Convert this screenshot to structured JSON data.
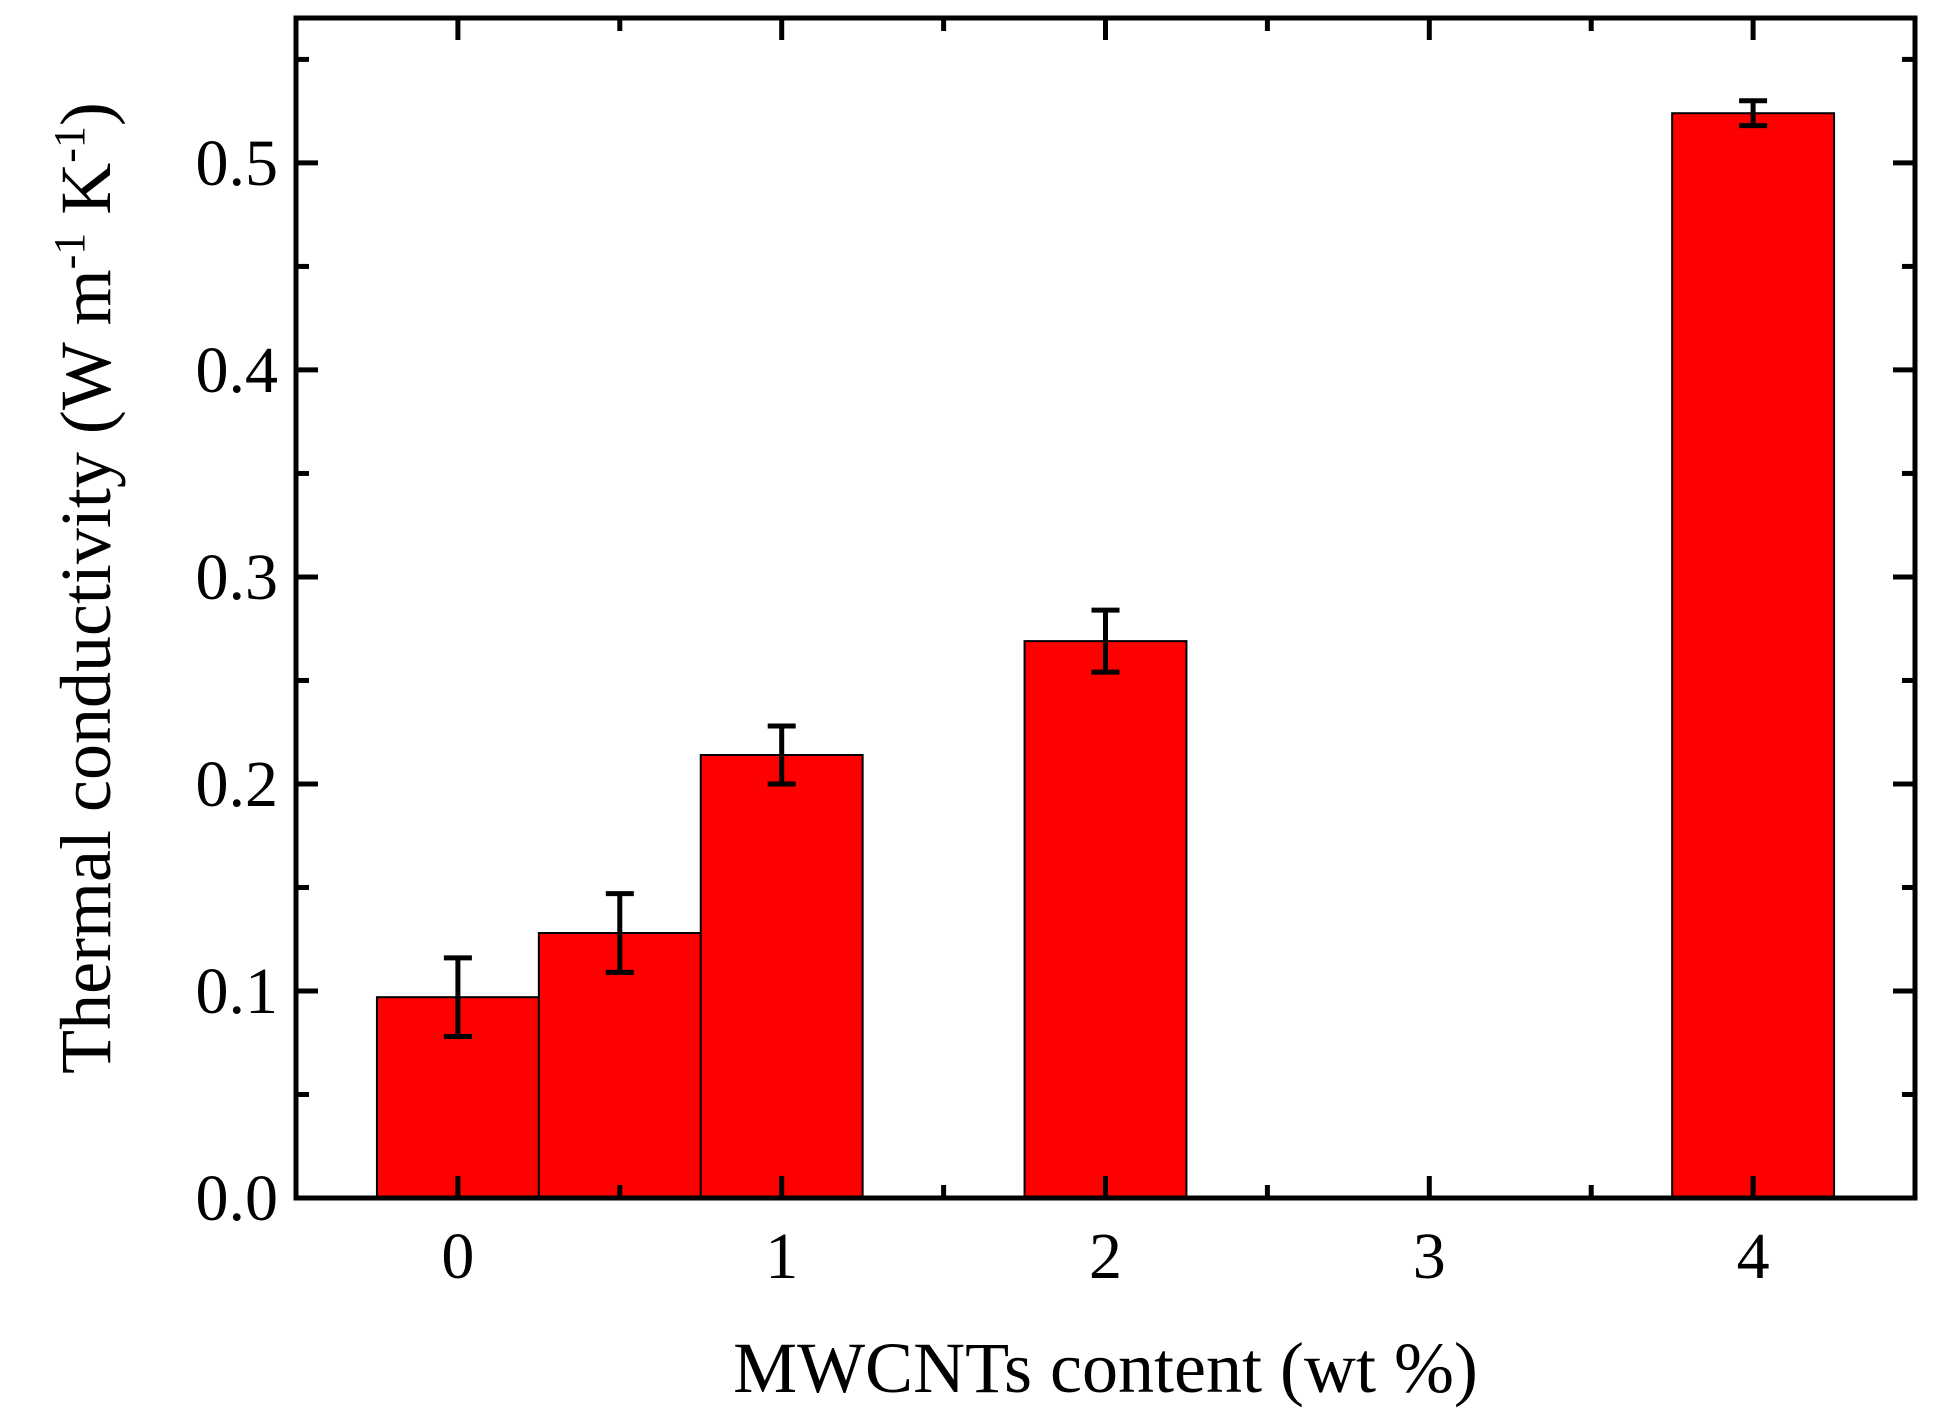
{
  "chart_data": {
    "type": "bar",
    "xlabel": "MWCNTs content (wt %)",
    "ylabel": {
      "text": "Thermal conductivity (W m",
      "sup1": "-1",
      "mid": " K",
      "sup2": "-1",
      "end": ")"
    },
    "xlim": [
      -0.5,
      4.5
    ],
    "ylim": [
      0.0,
      0.57
    ],
    "x_ticks": [
      0,
      1,
      2,
      3,
      4
    ],
    "x_tick_labels": [
      "0",
      "1",
      "2",
      "3",
      "4"
    ],
    "x_minor_ticks": [
      0.5,
      1.5,
      2.5,
      3.5
    ],
    "y_ticks": [
      0.0,
      0.1,
      0.2,
      0.3,
      0.4,
      0.5
    ],
    "y_tick_labels": [
      "0.0",
      "0.1",
      "0.2",
      "0.3",
      "0.4",
      "0.5"
    ],
    "y_minor_ticks": [
      0.05,
      0.15,
      0.25,
      0.35,
      0.45,
      0.55
    ],
    "bar_width": 0.5,
    "bar_color": "#ff0000",
    "bars": [
      {
        "x": 0.0,
        "value": 0.097,
        "error": 0.019
      },
      {
        "x": 0.5,
        "value": 0.128,
        "error": 0.019
      },
      {
        "x": 1.0,
        "value": 0.214,
        "error": 0.014
      },
      {
        "x": 2.0,
        "value": 0.269,
        "error": 0.015
      },
      {
        "x": 4.0,
        "value": 0.524,
        "error": 0.006
      }
    ],
    "grid": false,
    "legend": "none"
  }
}
